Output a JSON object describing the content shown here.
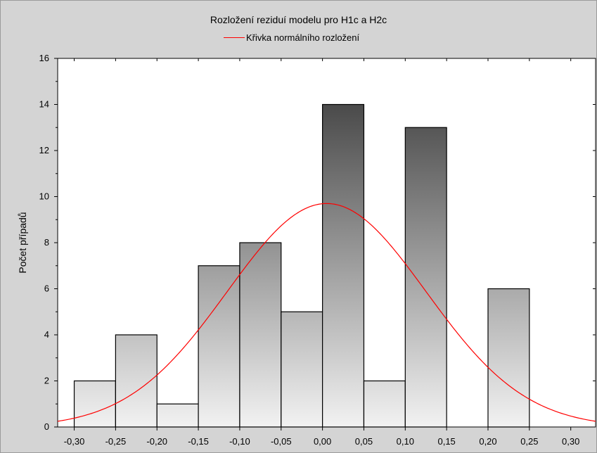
{
  "chart_data": {
    "type": "bar",
    "subtype": "histogram",
    "title": "Rozložení reziduí modelu pro H1c a H2c",
    "legend": [
      {
        "name": "Křivka normálního rozložení",
        "color": "#ff0000"
      }
    ],
    "ylabel": "Počet případů",
    "xlabel": "",
    "xlim": [
      -0.32,
      0.33
    ],
    "ylim": [
      0,
      16
    ],
    "y_ticks": [
      "0",
      "2",
      "4",
      "6",
      "8",
      "10",
      "12",
      "14",
      "16"
    ],
    "x_ticks": [
      "-0,30",
      "-0,25",
      "-0,20",
      "-0,15",
      "-0,10",
      "-0,05",
      "0,00",
      "0,05",
      "0,10",
      "0,15",
      "0,20",
      "0,25",
      "0,30"
    ],
    "bins": [
      {
        "from": -0.3,
        "to": -0.25,
        "count": 2
      },
      {
        "from": -0.25,
        "to": -0.2,
        "count": 4
      },
      {
        "from": -0.2,
        "to": -0.15,
        "count": 1
      },
      {
        "from": -0.15,
        "to": -0.1,
        "count": 7
      },
      {
        "from": -0.1,
        "to": -0.05,
        "count": 8
      },
      {
        "from": -0.05,
        "to": 0.0,
        "count": 5
      },
      {
        "from": 0.0,
        "to": 0.05,
        "count": 14
      },
      {
        "from": 0.05,
        "to": 0.1,
        "count": 2
      },
      {
        "from": 0.1,
        "to": 0.15,
        "count": 13
      },
      {
        "from": 0.15,
        "to": 0.2,
        "count": 0
      },
      {
        "from": 0.2,
        "to": 0.25,
        "count": 6
      }
    ],
    "normal_curve": {
      "mean": 0.005,
      "sd": 0.12,
      "peak": 9.7,
      "color": "#ff0000"
    },
    "grid": false,
    "legend_position": "top-center"
  }
}
